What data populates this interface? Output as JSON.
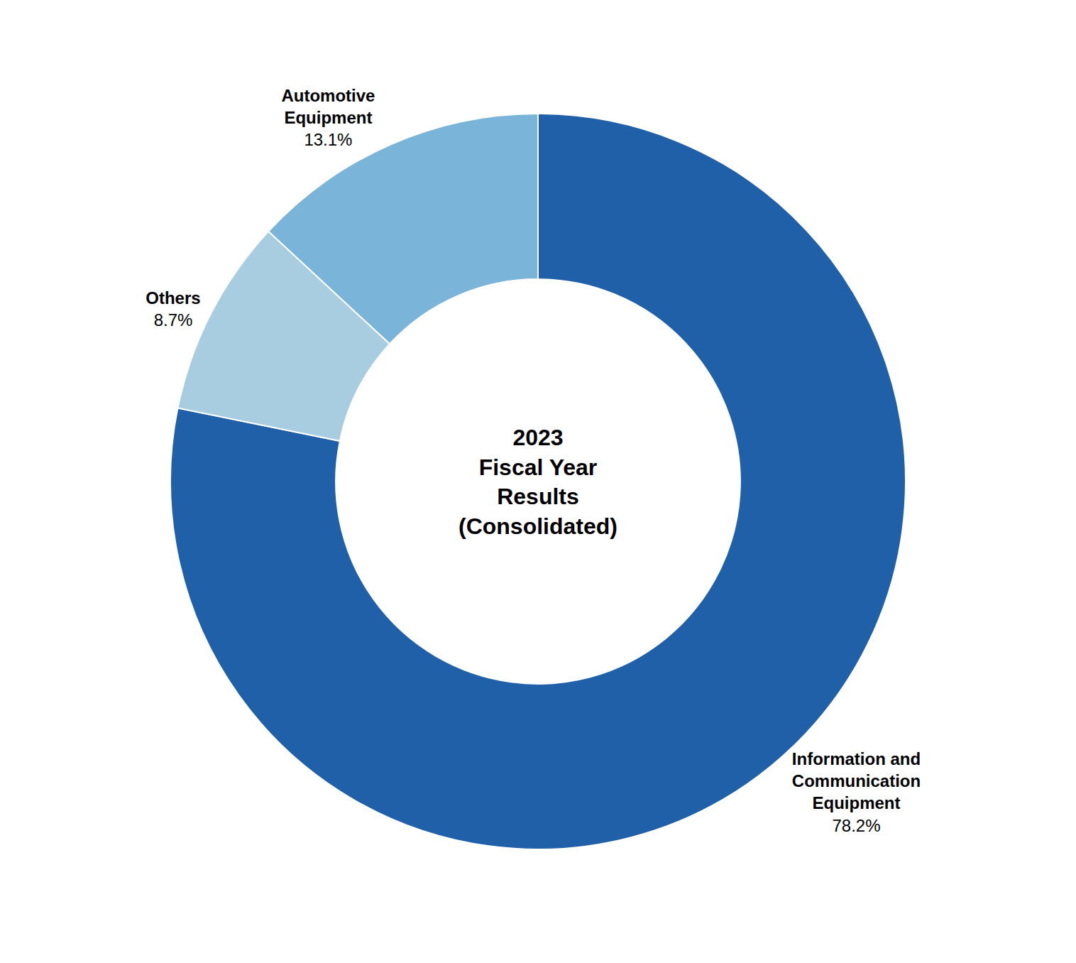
{
  "chart_data": {
    "type": "donut",
    "title": "2023\nFiscal Year\nResults\n(Consolidated)",
    "categories": [
      "Information and\nCommunication\nEquipment",
      "Others",
      "Automotive\nEquipment"
    ],
    "values": [
      78.2,
      8.7,
      13.1
    ],
    "value_labels": [
      "78.2%",
      "8.7%",
      "13.1%"
    ],
    "colors": [
      "#2060a8",
      "#a8cce0",
      "#7ab4d8"
    ],
    "data_labels": true
  }
}
